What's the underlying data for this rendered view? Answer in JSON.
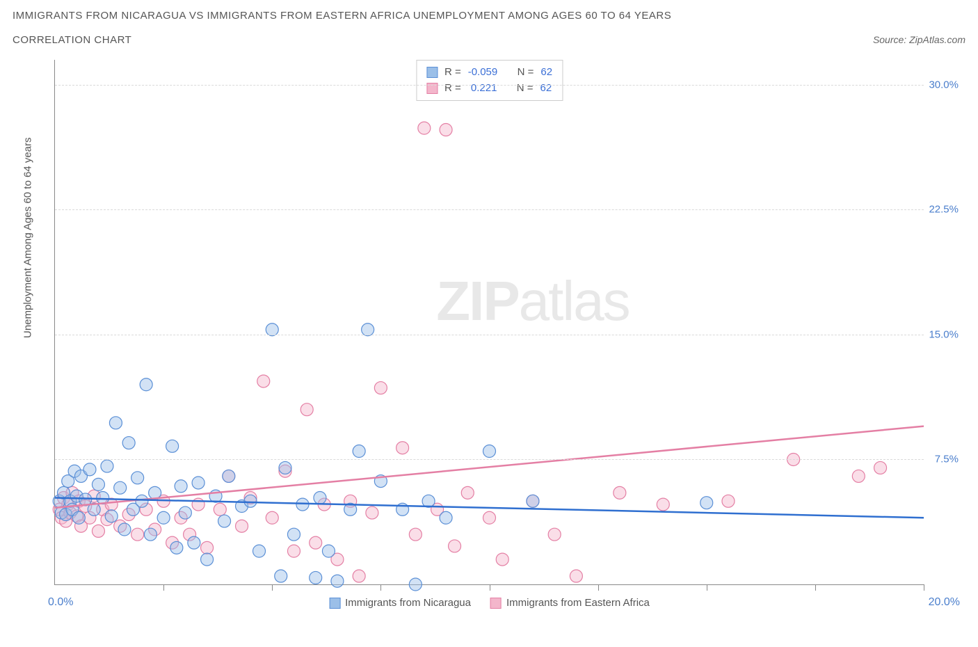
{
  "title_line1": "Immigrants from Nicaragua vs Immigrants from Eastern Africa Unemployment Among Ages 60 to 64 years",
  "title_line2": "Correlation Chart",
  "source_label": "Source: ZipAtlas.com",
  "y_axis_label": "Unemployment Among Ages 60 to 64 years",
  "watermark_zip": "ZIP",
  "watermark_atlas": "atlas",
  "chart": {
    "type": "scatter",
    "background_color": "#ffffff",
    "grid_color": "#d9d9d9",
    "axis_color": "#888888",
    "text_color": "#555555",
    "tick_label_color": "#4a7ecc",
    "xlim": [
      0,
      20
    ],
    "ylim": [
      0,
      31.5
    ],
    "x_tick_positions": [
      2.5,
      5.0,
      7.5,
      10.0,
      12.5,
      15.0,
      17.5,
      20.0
    ],
    "x_tick_label_left": "0.0%",
    "x_tick_label_right": "20.0%",
    "y_ticks": [
      {
        "value": 7.5,
        "label": "7.5%"
      },
      {
        "value": 15.0,
        "label": "15.0%"
      },
      {
        "value": 22.5,
        "label": "22.5%"
      },
      {
        "value": 30.0,
        "label": "30.0%"
      }
    ],
    "marker_radius": 9
  },
  "series": {
    "nicaragua": {
      "label": "Immigrants from Nicaragua",
      "color_stroke": "#5a8fd6",
      "color_fill": "#9bbfe8",
      "swatch_border": "#5a8fd6",
      "r_value": "-0.059",
      "n_value": "62",
      "regression": {
        "y_at_x0": 5.2,
        "y_at_x20": 4.0
      },
      "points": [
        [
          0.1,
          5.0
        ],
        [
          0.15,
          4.3
        ],
        [
          0.2,
          5.5
        ],
        [
          0.25,
          4.2
        ],
        [
          0.3,
          6.2
        ],
        [
          0.35,
          5.0
        ],
        [
          0.4,
          4.5
        ],
        [
          0.45,
          6.8
        ],
        [
          0.5,
          5.3
        ],
        [
          0.55,
          4.0
        ],
        [
          0.6,
          6.5
        ],
        [
          0.7,
          5.1
        ],
        [
          0.8,
          6.9
        ],
        [
          0.9,
          4.5
        ],
        [
          1.0,
          6.0
        ],
        [
          1.1,
          5.2
        ],
        [
          1.2,
          7.1
        ],
        [
          1.3,
          4.1
        ],
        [
          1.4,
          9.7
        ],
        [
          1.5,
          5.8
        ],
        [
          1.6,
          3.3
        ],
        [
          1.7,
          8.5
        ],
        [
          1.8,
          4.5
        ],
        [
          1.9,
          6.4
        ],
        [
          2.0,
          5.0
        ],
        [
          2.1,
          12.0
        ],
        [
          2.2,
          3.0
        ],
        [
          2.3,
          5.5
        ],
        [
          2.5,
          4.0
        ],
        [
          2.7,
          8.3
        ],
        [
          2.8,
          2.2
        ],
        [
          2.9,
          5.9
        ],
        [
          3.0,
          4.3
        ],
        [
          3.2,
          2.5
        ],
        [
          3.3,
          6.1
        ],
        [
          3.5,
          1.5
        ],
        [
          3.7,
          5.3
        ],
        [
          3.9,
          3.8
        ],
        [
          4.0,
          6.5
        ],
        [
          4.3,
          4.7
        ],
        [
          4.5,
          5.0
        ],
        [
          4.7,
          2.0
        ],
        [
          5.0,
          15.3
        ],
        [
          5.2,
          0.5
        ],
        [
          5.3,
          7.0
        ],
        [
          5.5,
          3.0
        ],
        [
          5.7,
          4.8
        ],
        [
          6.0,
          0.4
        ],
        [
          6.1,
          5.2
        ],
        [
          6.3,
          2.0
        ],
        [
          6.5,
          0.2
        ],
        [
          6.8,
          4.5
        ],
        [
          7.0,
          8.0
        ],
        [
          7.2,
          15.3
        ],
        [
          7.5,
          6.2
        ],
        [
          8.0,
          4.5
        ],
        [
          8.3,
          0.0
        ],
        [
          8.6,
          5.0
        ],
        [
          9.0,
          4.0
        ],
        [
          10.0,
          8.0
        ],
        [
          11.0,
          5.0
        ],
        [
          15.0,
          4.9
        ]
      ]
    },
    "eastern_africa": {
      "label": "Immigrants from Eastern Africa",
      "color_stroke": "#e47fa4",
      "color_fill": "#f3b6cb",
      "swatch_border": "#e47fa4",
      "r_value": "0.221",
      "n_value": "62",
      "regression": {
        "y_at_x0": 4.6,
        "y_at_x20": 9.5
      },
      "points": [
        [
          0.1,
          4.5
        ],
        [
          0.15,
          4.0
        ],
        [
          0.2,
          5.2
        ],
        [
          0.25,
          3.8
        ],
        [
          0.3,
          4.8
        ],
        [
          0.35,
          4.3
        ],
        [
          0.4,
          5.5
        ],
        [
          0.5,
          4.1
        ],
        [
          0.55,
          5.0
        ],
        [
          0.6,
          3.5
        ],
        [
          0.7,
          4.7
        ],
        [
          0.8,
          4.0
        ],
        [
          0.9,
          5.3
        ],
        [
          1.0,
          3.2
        ],
        [
          1.1,
          4.5
        ],
        [
          1.2,
          3.9
        ],
        [
          1.3,
          4.8
        ],
        [
          1.5,
          3.5
        ],
        [
          1.7,
          4.2
        ],
        [
          1.9,
          3.0
        ],
        [
          2.1,
          4.5
        ],
        [
          2.3,
          3.3
        ],
        [
          2.5,
          5.0
        ],
        [
          2.7,
          2.5
        ],
        [
          2.9,
          4.0
        ],
        [
          3.1,
          3.0
        ],
        [
          3.3,
          4.8
        ],
        [
          3.5,
          2.2
        ],
        [
          3.8,
          4.5
        ],
        [
          4.0,
          6.5
        ],
        [
          4.3,
          3.5
        ],
        [
          4.5,
          5.2
        ],
        [
          4.8,
          12.2
        ],
        [
          5.0,
          4.0
        ],
        [
          5.3,
          6.8
        ],
        [
          5.5,
          2.0
        ],
        [
          5.8,
          10.5
        ],
        [
          6.0,
          2.5
        ],
        [
          6.2,
          4.8
        ],
        [
          6.5,
          1.5
        ],
        [
          6.8,
          5.0
        ],
        [
          7.0,
          0.5
        ],
        [
          7.3,
          4.3
        ],
        [
          7.5,
          11.8
        ],
        [
          8.0,
          8.2
        ],
        [
          8.3,
          3.0
        ],
        [
          8.5,
          27.4
        ],
        [
          8.8,
          4.5
        ],
        [
          9.0,
          27.3
        ],
        [
          9.2,
          2.3
        ],
        [
          9.5,
          5.5
        ],
        [
          10.0,
          4.0
        ],
        [
          10.3,
          1.5
        ],
        [
          11.0,
          5.0
        ],
        [
          11.5,
          3.0
        ],
        [
          12.0,
          0.5
        ],
        [
          13.0,
          5.5
        ],
        [
          14.0,
          4.8
        ],
        [
          15.5,
          5.0
        ],
        [
          17.0,
          7.5
        ],
        [
          18.5,
          6.5
        ],
        [
          19.0,
          7.0
        ]
      ]
    }
  },
  "stats_labels": {
    "r_prefix": "R =",
    "n_prefix": "N ="
  }
}
